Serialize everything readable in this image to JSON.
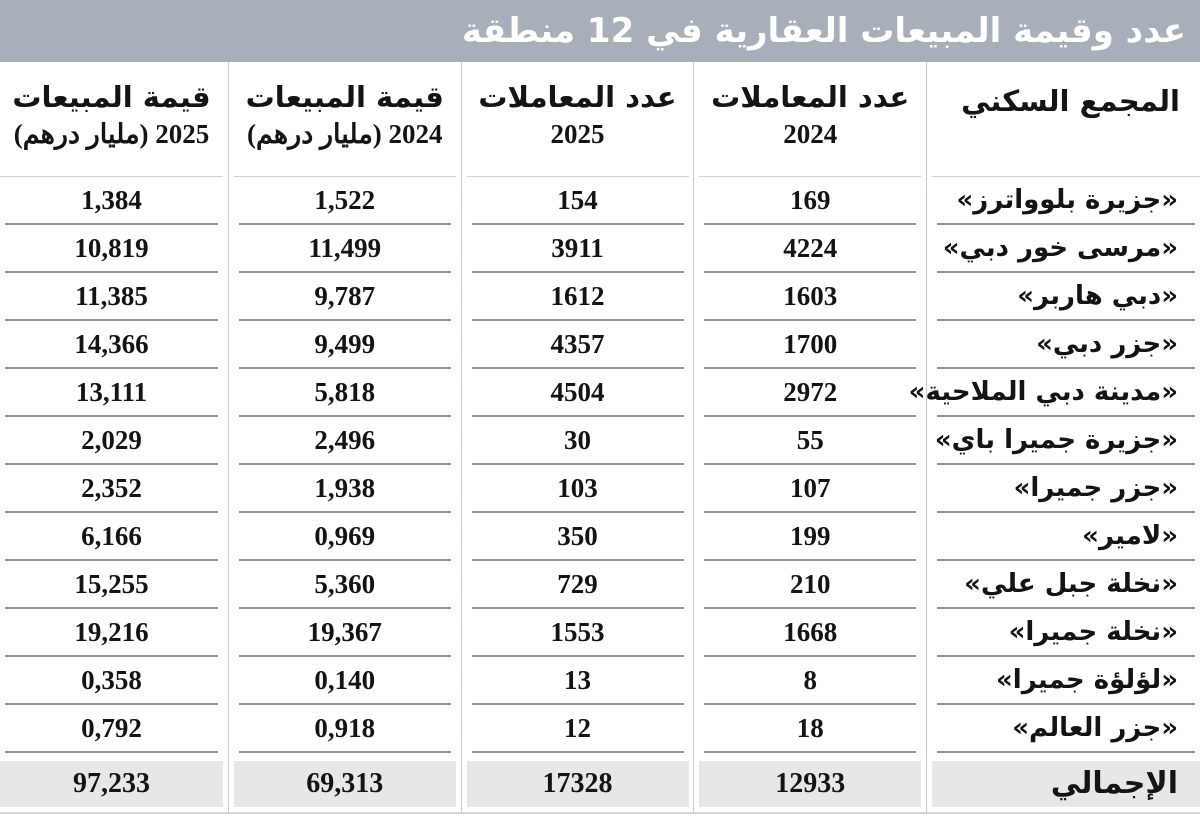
{
  "title": "عدد وقيمة المبيعات العقارية في 12 منطقة",
  "colors": {
    "title_bg": "#a7b0b9",
    "title_text": "#ffffff",
    "column_divider": "#c3cdd3",
    "row_line": "#90969c",
    "total_row_bg": "#e7e7e9",
    "text": "#141414"
  },
  "chart_data": {
    "type": "table",
    "title": "عدد وقيمة المبيعات العقارية في 12 منطقة",
    "columns": [
      {
        "key": "name",
        "label_line1": "المجمع السكني",
        "label_line2": ""
      },
      {
        "key": "tx2024",
        "label_line1": "عدد المعاملات",
        "label_line2": "2024"
      },
      {
        "key": "tx2025",
        "label_line1": "عدد المعاملات",
        "label_line2": "2025"
      },
      {
        "key": "val2024",
        "label_line1": "قيمة المبيعات",
        "label_line2": "2024 (مليار درهم)"
      },
      {
        "key": "val2025",
        "label_line1": "قيمة المبيعات",
        "label_line2": "2025 (مليار درهم)"
      }
    ],
    "rows": [
      {
        "name": "«جزيرة بلوواترز»",
        "tx2024": "169",
        "tx2025": "154",
        "val2024": "1,522",
        "val2025": "1,384"
      },
      {
        "name": "«مرسى خور دبي»",
        "tx2024": "4224",
        "tx2025": "3911",
        "val2024": "11,499",
        "val2025": "10,819"
      },
      {
        "name": "«دبي هاربر»",
        "tx2024": "1603",
        "tx2025": "1612",
        "val2024": "9,787",
        "val2025": "11,385"
      },
      {
        "name": "«جزر دبي»",
        "tx2024": "1700",
        "tx2025": "4357",
        "val2024": "9,499",
        "val2025": "14,366"
      },
      {
        "name": "«مدينة دبي الملاحية»",
        "tx2024": "2972",
        "tx2025": "4504",
        "val2024": "5,818",
        "val2025": "13,111"
      },
      {
        "name": "«جزيرة جميرا باي»",
        "tx2024": "55",
        "tx2025": "30",
        "val2024": "2,496",
        "val2025": "2,029"
      },
      {
        "name": "«جزر جميرا»",
        "tx2024": "107",
        "tx2025": "103",
        "val2024": "1,938",
        "val2025": "2,352"
      },
      {
        "name": "«لامير»",
        "tx2024": "199",
        "tx2025": "350",
        "val2024": "0,969",
        "val2025": "6,166"
      },
      {
        "name": "«نخلة جبل علي»",
        "tx2024": "210",
        "tx2025": "729",
        "val2024": "5,360",
        "val2025": "15,255"
      },
      {
        "name": "«نخلة جميرا»",
        "tx2024": "1668",
        "tx2025": "1553",
        "val2024": "19,367",
        "val2025": "19,216"
      },
      {
        "name": "«لؤلؤة جميرا»",
        "tx2024": "8",
        "tx2025": "13",
        "val2024": "0,140",
        "val2025": "0,358"
      },
      {
        "name": "«جزر العالم»",
        "tx2024": "18",
        "tx2025": "12",
        "val2024": "0,918",
        "val2025": "0,792"
      }
    ],
    "total": {
      "name": "الإجمالي",
      "tx2024": "12933",
      "tx2025": "17328",
      "val2024": "69,313",
      "val2025": "97,233"
    }
  }
}
